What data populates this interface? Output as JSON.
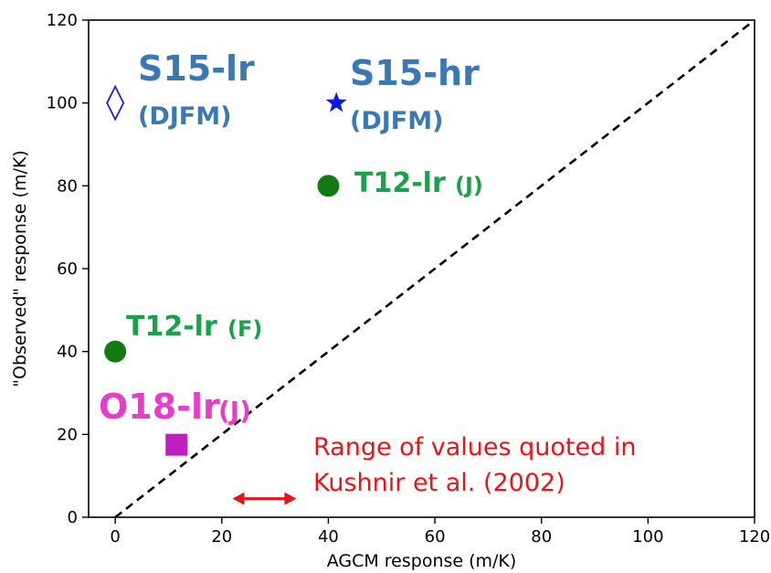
{
  "chart_data": {
    "type": "scatter",
    "title": "",
    "xlabel": "AGCM response (m/K)",
    "ylabel": "\"Observed\" response (m/K)",
    "xlim": [
      -5,
      120
    ],
    "ylim": [
      0,
      120
    ],
    "xticks": [
      0,
      20,
      40,
      60,
      80,
      100,
      120
    ],
    "yticks": [
      0,
      20,
      40,
      60,
      80,
      100,
      120
    ],
    "grid": false,
    "legend": "none",
    "reference_line": {
      "style": "dashed",
      "color": "#000000",
      "from": [
        0,
        0
      ],
      "to": [
        120,
        120
      ]
    },
    "points": [
      {
        "x": 0,
        "y": 100,
        "marker": "thin-diamond-open",
        "color": "#1f1fdf"
      },
      {
        "x": 41.5,
        "y": 100,
        "marker": "star",
        "color": "#0b18e6"
      },
      {
        "x": 40,
        "y": 80,
        "marker": "circle",
        "color": "#137a13"
      },
      {
        "x": 0,
        "y": 40,
        "marker": "circle",
        "color": "#137a13"
      },
      {
        "x": 11.5,
        "y": 17.5,
        "marker": "square",
        "color": "#bf1fbf"
      }
    ],
    "annotations": [
      {
        "main": "S15-lr",
        "sub": "(DJFM)",
        "color": "#3a77b5"
      },
      {
        "main": "S15-hr",
        "sub": "(DJFM)",
        "color": "#3a77b5"
      },
      {
        "main": "T12-lr",
        "sub": "(J)",
        "color": "#1aa24a"
      },
      {
        "main": "T12-lr",
        "sub": "(F)",
        "color": "#1aa24a"
      },
      {
        "main": "O18-lr",
        "sub": "(J)",
        "color": "#e83ccb"
      }
    ],
    "range_note": {
      "lines": [
        "Range of values quoted in",
        "Kushnir et al. (2002)"
      ],
      "x_range": [
        22,
        34
      ],
      "y": 4.5,
      "color": "#e8141b"
    }
  }
}
